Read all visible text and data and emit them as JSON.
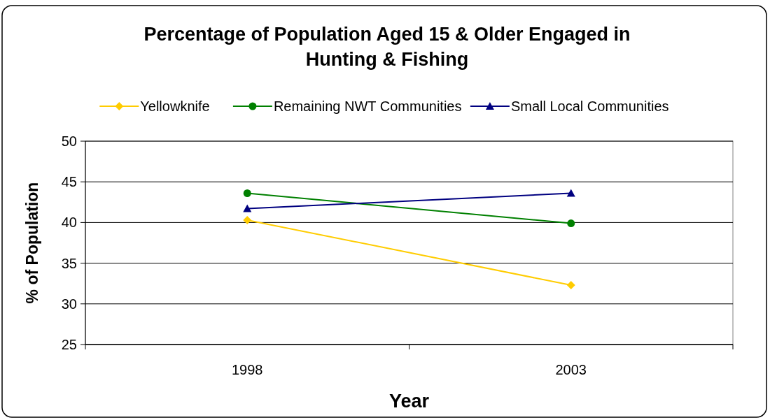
{
  "chart_data": {
    "type": "line",
    "title": "Percentage of Population Aged 15 & Older Engaged in Hunting & Fishing",
    "xlabel": "Year",
    "ylabel": "% of Population",
    "categories": [
      "1998",
      "2003"
    ],
    "series": [
      {
        "name": "Yellowknife",
        "color": "#ffcc00",
        "marker": "diamond",
        "values": [
          40.3,
          32.3
        ]
      },
      {
        "name": "Remaining NWT Communities",
        "color": "#008000",
        "marker": "circle",
        "values": [
          43.6,
          39.9
        ]
      },
      {
        "name": "Small Local Communities",
        "color": "#000080",
        "marker": "triangle",
        "values": [
          41.7,
          43.6
        ]
      }
    ],
    "ylim": [
      25,
      50
    ],
    "yticks": [
      25,
      30,
      35,
      40,
      45,
      50
    ],
    "grid": "y",
    "legend": "top"
  }
}
